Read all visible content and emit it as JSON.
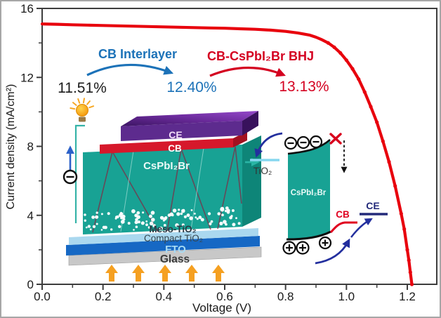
{
  "chart_data": {
    "type": "line",
    "title": "",
    "xlabel": "Voltage (V)",
    "ylabel": "Current density (mA/cm²)",
    "xlim": [
      0,
      1.3
    ],
    "ylim": [
      0,
      16
    ],
    "grid": false,
    "legend": "none",
    "x_ticks": [
      {
        "v": 0.0,
        "label": "0.0"
      },
      {
        "v": 0.2,
        "label": "0.2"
      },
      {
        "v": 0.4,
        "label": "0.4"
      },
      {
        "v": 0.6,
        "label": "0.6"
      },
      {
        "v": 0.8,
        "label": "0.8"
      },
      {
        "v": 1.0,
        "label": "1.0"
      },
      {
        "v": 1.2,
        "label": "1.2"
      }
    ],
    "x_minor_ticks": [
      0.1,
      0.3,
      0.5,
      0.7,
      0.9,
      1.1
    ],
    "y_ticks": [
      {
        "v": 0,
        "label": "0"
      },
      {
        "v": 4,
        "label": "4"
      },
      {
        "v": 8,
        "label": "8"
      },
      {
        "v": 12,
        "label": "12"
      },
      {
        "v": 16,
        "label": "16"
      }
    ],
    "y_minor_ticks": [
      2,
      6,
      10,
      14
    ],
    "series": [
      {
        "name": "CB-CsPbI₂Br BHJ",
        "color": "#e8000d",
        "marker": "beaded-dots",
        "points": [
          [
            0.0,
            15.1
          ],
          [
            0.05,
            15.08
          ],
          [
            0.1,
            15.05
          ],
          [
            0.15,
            15.03
          ],
          [
            0.2,
            15.01
          ],
          [
            0.25,
            14.99
          ],
          [
            0.3,
            14.97
          ],
          [
            0.35,
            14.95
          ],
          [
            0.4,
            14.93
          ],
          [
            0.45,
            14.91
          ],
          [
            0.5,
            14.89
          ],
          [
            0.55,
            14.87
          ],
          [
            0.6,
            14.85
          ],
          [
            0.65,
            14.82
          ],
          [
            0.7,
            14.79
          ],
          [
            0.75,
            14.74
          ],
          [
            0.8,
            14.67
          ],
          [
            0.84,
            14.58
          ],
          [
            0.88,
            14.45
          ],
          [
            0.9,
            14.33
          ],
          [
            0.92,
            14.18
          ],
          [
            0.94,
            14.0
          ],
          [
            0.96,
            13.75
          ],
          [
            0.98,
            13.42
          ],
          [
            1.0,
            13.0
          ],
          [
            1.02,
            12.5
          ],
          [
            1.04,
            11.9
          ],
          [
            1.06,
            11.15
          ],
          [
            1.08,
            10.3
          ],
          [
            1.1,
            9.4
          ],
          [
            1.12,
            8.3
          ],
          [
            1.14,
            7.1
          ],
          [
            1.16,
            5.7
          ],
          [
            1.18,
            4.1
          ],
          [
            1.19,
            3.2
          ],
          [
            1.2,
            2.0
          ],
          [
            1.205,
            1.4
          ],
          [
            1.21,
            0.7
          ],
          [
            1.215,
            0.0
          ]
        ]
      }
    ]
  },
  "annotations": {
    "pce_baseline": {
      "text": "11.51%",
      "color": "#1a1a1a"
    },
    "pce_interlayer": {
      "text": "12.40%",
      "color": "#1c72b8"
    },
    "pce_bhj": {
      "text": "13.13%",
      "color": "#d40020"
    },
    "arrow_interlayer": {
      "text": "CB Interlayer",
      "color": "#1c72b8"
    },
    "arrow_bhj": {
      "text": "CB-CsPbI₂Br BHJ",
      "color": "#d40020"
    }
  },
  "device_inset": {
    "layers": [
      {
        "label": "CE",
        "color": "#5d2b8e"
      },
      {
        "label": "CB",
        "color": "#d6182b"
      },
      {
        "label": "CsPbI₂Br",
        "color": "#18a294"
      },
      {
        "label": "Meso-TiO₂",
        "color": "#18a294"
      },
      {
        "label": "Compact TiO₂",
        "color": "#aad8ef"
      },
      {
        "label": "FTO",
        "color": "#1668c4"
      },
      {
        "label": "Glass",
        "color": "#c8c8c8"
      }
    ],
    "electron_symbol": "⊖",
    "light_arrow_count": 5,
    "light_arrow_color": "#f5a021",
    "bulb_color": "#f28c00"
  },
  "band_inset": {
    "tio2_label": "TiO₂",
    "absorber_label": "CsPbI₂Br",
    "cb_label": "CB",
    "ce_label": "CE",
    "electron_symbol": "⊖",
    "hole_symbol": "⊕",
    "blocked_symbol": "✕",
    "blocked_color": "#d8001c",
    "arrow_color": "#232f9e",
    "cb_line_color": "#e0001f",
    "ce_line_color": "#232a7a",
    "tio2_line_color": "#86d7ef"
  }
}
